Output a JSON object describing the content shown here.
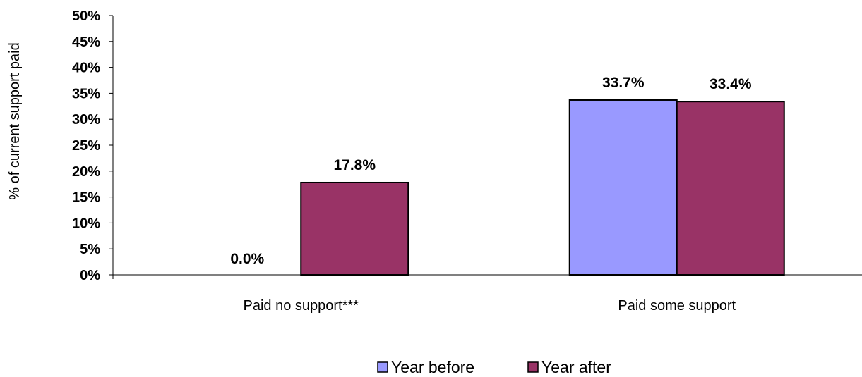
{
  "chart_data": {
    "type": "bar",
    "title": "",
    "xlabel": "",
    "ylabel": "% of current support paid",
    "ylim": [
      0,
      50
    ],
    "yticks": [
      "0%",
      "5%",
      "10%",
      "15%",
      "20%",
      "25%",
      "30%",
      "35%",
      "40%",
      "45%",
      "50%"
    ],
    "categories": [
      "Paid no support***",
      "Paid some support"
    ],
    "series": [
      {
        "name": "Year before",
        "values": [
          0.0,
          33.7
        ],
        "labels": [
          "0.0%",
          "33.7%"
        ],
        "color": "#9999ff"
      },
      {
        "name": "Year after",
        "values": [
          17.8,
          33.4
        ],
        "labels": [
          "17.8%",
          "33.4%"
        ],
        "color": "#993366"
      }
    ],
    "grid": false,
    "legend": "bottom"
  }
}
